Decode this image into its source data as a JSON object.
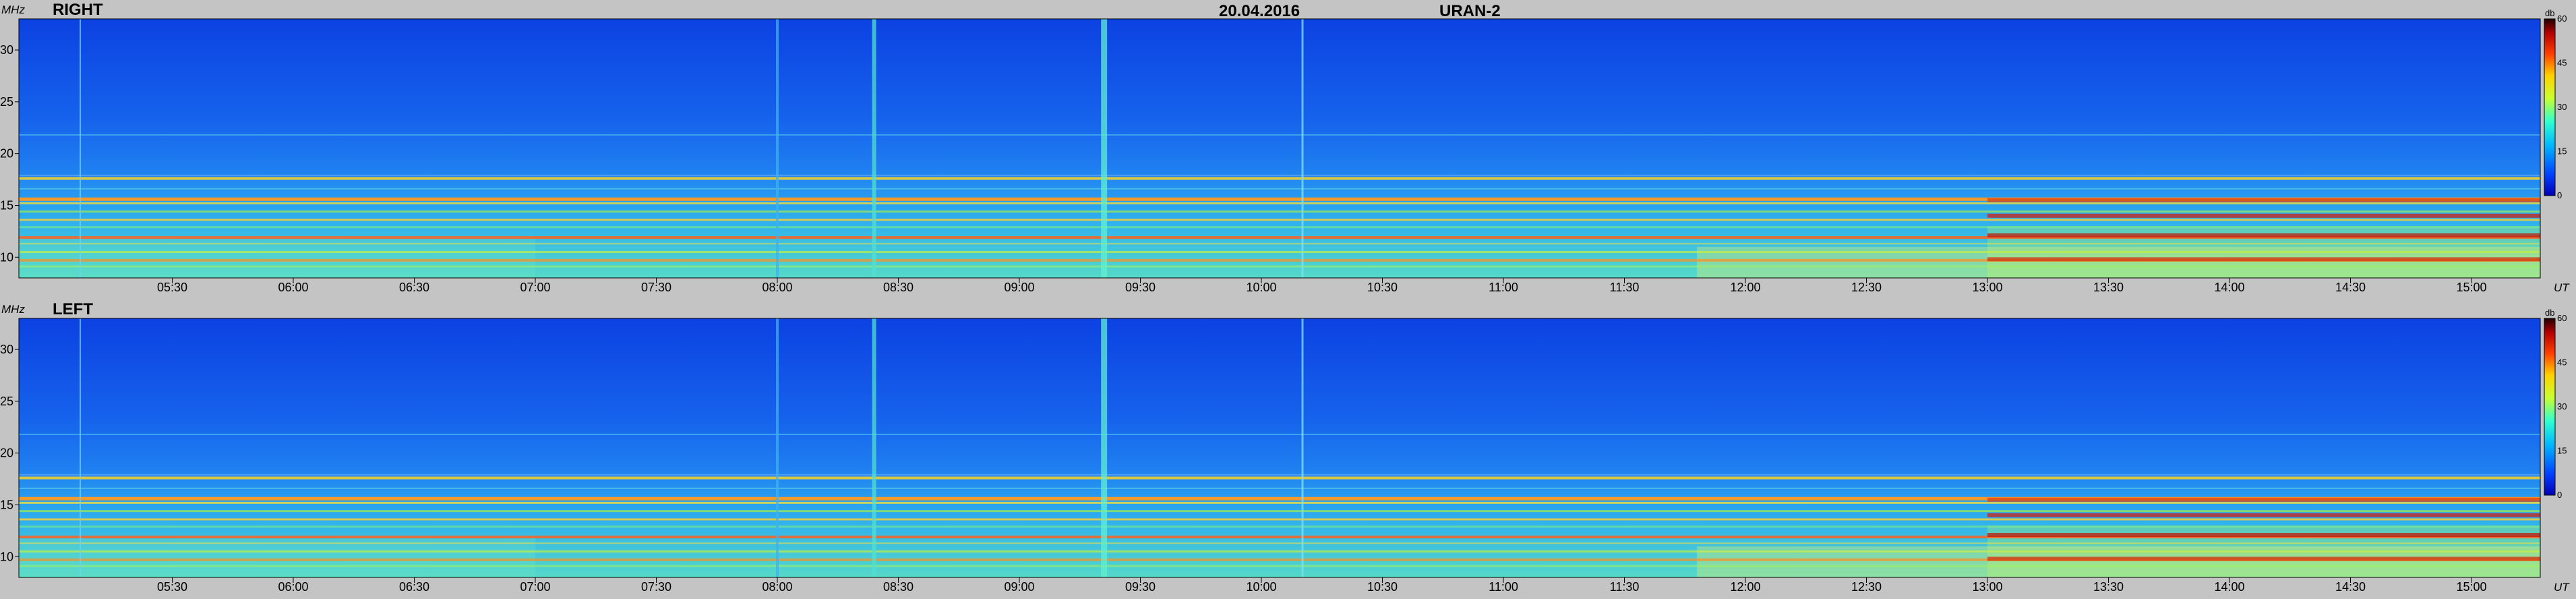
{
  "header": {
    "date": "20.04.2016",
    "instrument": "URAN-2"
  },
  "chart_data": [
    {
      "type": "heatmap",
      "title": "RIGHT",
      "ylabel": "MHz",
      "xlabel": "UT",
      "x_ticks": [
        "05:30",
        "06:00",
        "06:30",
        "07:00",
        "07:30",
        "08:00",
        "08:30",
        "09:00",
        "09:30",
        "10:00",
        "10:30",
        "11:00",
        "11:30",
        "12:00",
        "12:30",
        "13:00",
        "13:30",
        "14:00",
        "14:30",
        "15:00"
      ],
      "y_ticks": [
        10,
        15,
        20,
        25,
        30
      ],
      "ylim": [
        8,
        33
      ],
      "colorbar": {
        "unit": "db",
        "ticks": [
          0,
          15,
          30,
          45,
          60
        ],
        "range": [
          0,
          60
        ]
      }
    },
    {
      "type": "heatmap",
      "title": "LEFT",
      "ylabel": "MHz",
      "xlabel": "UT",
      "x_ticks": [
        "05:30",
        "06:00",
        "06:30",
        "07:00",
        "07:30",
        "08:00",
        "08:30",
        "09:00",
        "09:30",
        "10:00",
        "10:30",
        "11:00",
        "11:30",
        "12:00",
        "12:30",
        "13:00",
        "13:30",
        "14:00",
        "14:30",
        "15:00"
      ],
      "y_ticks": [
        10,
        15,
        20,
        25,
        30
      ],
      "ylim": [
        8,
        33
      ],
      "colorbar": {
        "unit": "db",
        "ticks": [
          0,
          15,
          30,
          45,
          60
        ],
        "range": [
          0,
          60
        ]
      }
    }
  ]
}
